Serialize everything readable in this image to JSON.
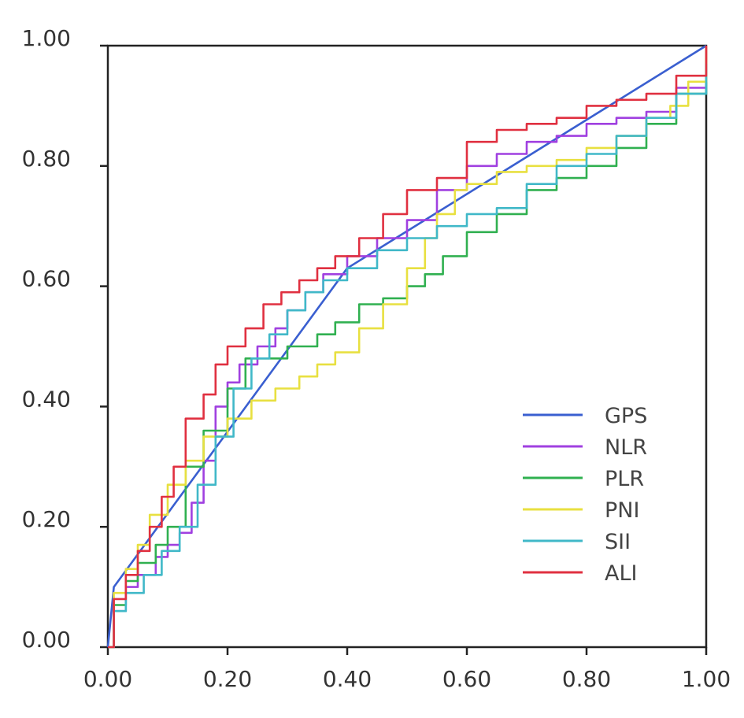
{
  "chart_data": {
    "type": "line",
    "title": "",
    "xlabel": "",
    "ylabel": "",
    "xlim": [
      0,
      1
    ],
    "ylim": [
      0,
      1
    ],
    "x_ticks": [
      "0.00",
      "0.20",
      "0.40",
      "0.60",
      "0.80",
      "1.00"
    ],
    "y_ticks": [
      "0.00",
      "0.20",
      "0.40",
      "0.60",
      "0.80",
      "1.00"
    ],
    "grid": false,
    "legend": "bottom-right",
    "series": [
      {
        "name": "GPS",
        "color": "#3a5fd0",
        "x": [
          0,
          0.01,
          0.4,
          1.0
        ],
        "y": [
          0,
          0.1,
          0.63,
          1.0
        ]
      },
      {
        "name": "NLR",
        "color": "#a040e0",
        "x": [
          0,
          0.01,
          0.03,
          0.05,
          0.08,
          0.1,
          0.12,
          0.14,
          0.16,
          0.18,
          0.2,
          0.22,
          0.25,
          0.28,
          0.3,
          0.33,
          0.36,
          0.4,
          0.45,
          0.5,
          0.55,
          0.6,
          0.65,
          0.7,
          0.75,
          0.8,
          0.85,
          0.9,
          0.95,
          1.0
        ],
        "y": [
          0,
          0.06,
          0.1,
          0.12,
          0.15,
          0.17,
          0.19,
          0.24,
          0.31,
          0.4,
          0.44,
          0.47,
          0.5,
          0.53,
          0.56,
          0.59,
          0.62,
          0.65,
          0.68,
          0.71,
          0.76,
          0.8,
          0.82,
          0.84,
          0.85,
          0.87,
          0.88,
          0.89,
          0.93,
          1.0
        ]
      },
      {
        "name": "PLR",
        "color": "#30b050",
        "x": [
          0,
          0.01,
          0.03,
          0.05,
          0.08,
          0.1,
          0.13,
          0.16,
          0.2,
          0.23,
          0.27,
          0.3,
          0.35,
          0.38,
          0.42,
          0.46,
          0.5,
          0.53,
          0.56,
          0.6,
          0.65,
          0.7,
          0.75,
          0.8,
          0.85,
          0.9,
          0.95,
          1.0
        ],
        "y": [
          0,
          0.07,
          0.11,
          0.14,
          0.17,
          0.2,
          0.3,
          0.36,
          0.43,
          0.48,
          0.48,
          0.5,
          0.52,
          0.54,
          0.57,
          0.58,
          0.6,
          0.62,
          0.65,
          0.69,
          0.72,
          0.76,
          0.78,
          0.8,
          0.83,
          0.87,
          0.92,
          0.98
        ]
      },
      {
        "name": "PNI",
        "color": "#e8e040",
        "x": [
          0,
          0.01,
          0.03,
          0.05,
          0.07,
          0.1,
          0.13,
          0.16,
          0.2,
          0.24,
          0.28,
          0.32,
          0.35,
          0.38,
          0.42,
          0.46,
          0.5,
          0.53,
          0.55,
          0.58,
          0.6,
          0.65,
          0.7,
          0.75,
          0.8,
          0.85,
          0.9,
          0.94,
          0.97,
          1.0
        ],
        "y": [
          0,
          0.09,
          0.13,
          0.17,
          0.22,
          0.27,
          0.31,
          0.35,
          0.38,
          0.41,
          0.43,
          0.45,
          0.47,
          0.49,
          0.53,
          0.57,
          0.63,
          0.68,
          0.72,
          0.76,
          0.77,
          0.79,
          0.8,
          0.81,
          0.83,
          0.85,
          0.88,
          0.9,
          0.94,
          1.0
        ]
      },
      {
        "name": "SII",
        "color": "#40b8c8",
        "x": [
          0,
          0.01,
          0.03,
          0.06,
          0.09,
          0.12,
          0.15,
          0.18,
          0.21,
          0.24,
          0.27,
          0.3,
          0.33,
          0.36,
          0.4,
          0.45,
          0.5,
          0.55,
          0.6,
          0.65,
          0.7,
          0.75,
          0.8,
          0.85,
          0.9,
          0.95,
          1.0
        ],
        "y": [
          0,
          0.06,
          0.09,
          0.12,
          0.16,
          0.2,
          0.27,
          0.35,
          0.43,
          0.48,
          0.52,
          0.56,
          0.59,
          0.61,
          0.63,
          0.66,
          0.68,
          0.7,
          0.72,
          0.73,
          0.77,
          0.8,
          0.82,
          0.85,
          0.88,
          0.92,
          0.97
        ]
      },
      {
        "name": "ALI",
        "color": "#e03040",
        "x": [
          0,
          0.01,
          0.03,
          0.05,
          0.07,
          0.09,
          0.11,
          0.13,
          0.16,
          0.18,
          0.2,
          0.23,
          0.26,
          0.29,
          0.32,
          0.35,
          0.38,
          0.42,
          0.46,
          0.5,
          0.55,
          0.6,
          0.65,
          0.7,
          0.75,
          0.8,
          0.85,
          0.9,
          0.95,
          1.0
        ],
        "y": [
          0,
          0.08,
          0.12,
          0.16,
          0.2,
          0.25,
          0.3,
          0.38,
          0.42,
          0.47,
          0.5,
          0.53,
          0.57,
          0.59,
          0.61,
          0.63,
          0.65,
          0.68,
          0.72,
          0.76,
          0.78,
          0.84,
          0.86,
          0.87,
          0.88,
          0.9,
          0.91,
          0.92,
          0.95,
          1.0
        ]
      }
    ]
  }
}
